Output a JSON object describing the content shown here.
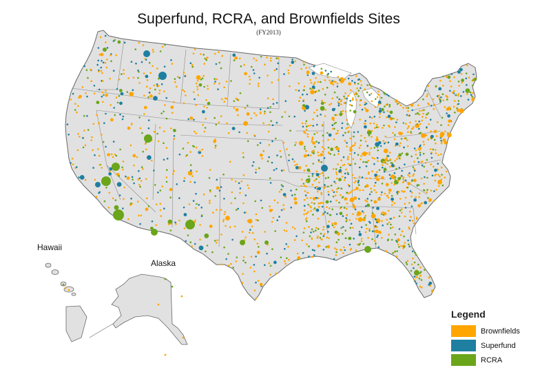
{
  "title": "Superfund, RCRA, and Brownfields Sites",
  "subtitle": "(FY2013)",
  "insets": {
    "hawaii_label": "Hawaii",
    "alaska_label": "Alaska"
  },
  "legend": {
    "title": "Legend",
    "items": [
      {
        "label": "Brownfields",
        "color": "#FFA500"
      },
      {
        "label": "Superfund",
        "color": "#1F7FA0"
      },
      {
        "label": "RCRA",
        "color": "#6AA51A"
      }
    ]
  },
  "colors": {
    "land": "#E1E1E1",
    "border": "#666666",
    "brownfields": "#FFA500",
    "superfund": "#1F7FA0",
    "rcra": "#6AA51A"
  }
}
